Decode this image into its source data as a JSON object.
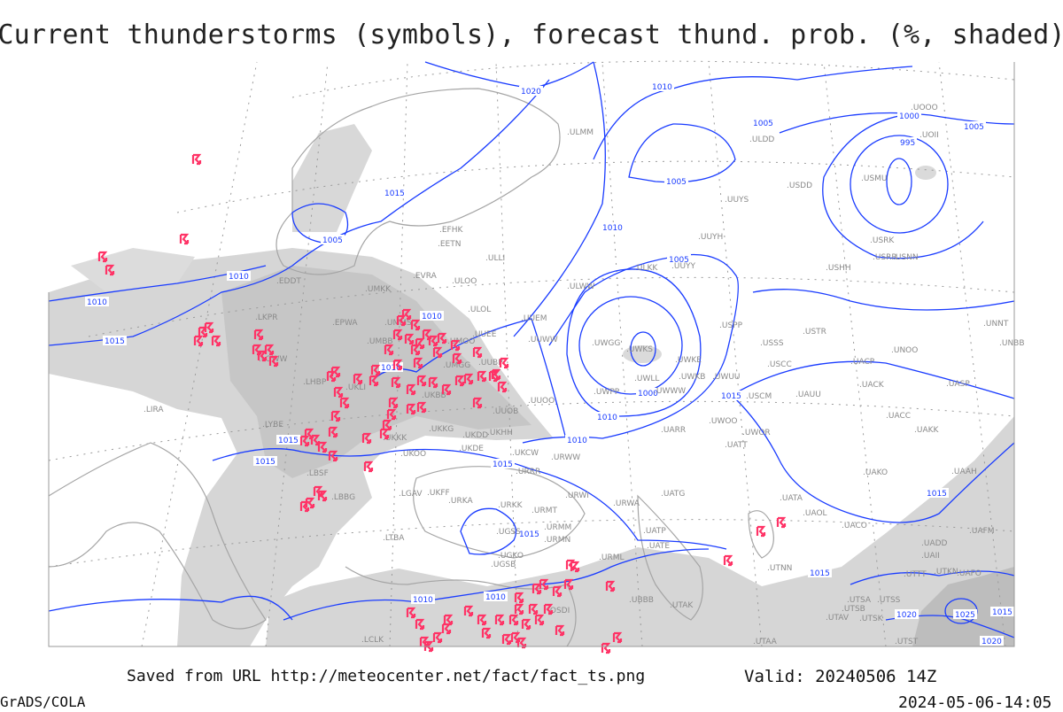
{
  "title": "Current thunderstorms (symbols), forecast thund. prob. (%, shaded)",
  "footer": {
    "saved_from": "Saved from URL http://meteocenter.net/fact/fact_ts.png",
    "valid": "Valid: 20240506 14Z",
    "software": "GrADS/COLA",
    "generated": "2024-05-06-14:05"
  },
  "colors": {
    "thunderstorm_symbol": "#ff3366",
    "isobar": "#1a3cff",
    "probability_shading": "#d4d4d4",
    "probability_shading_dark": "#bdbdbd",
    "station_label": "#8a8a8a"
  },
  "legend": {
    "symbols": "thunderstorm-symbol-icon",
    "shaded": "forecast thunderstorm probability (%)"
  },
  "isobar_labels": [
    "1020",
    "1010",
    "1005",
    "1000",
    "995",
    "1005",
    "1015",
    "1005",
    "1010",
    "1010",
    "1010",
    "1005",
    "1000",
    "1005",
    "1010",
    "1015",
    "1010",
    "1015",
    "1015",
    "1015",
    "1015",
    "1010",
    "1010",
    "1015",
    "1015",
    "1015",
    "1020",
    "1025",
    "1015",
    "1020",
    "1010",
    "1010"
  ],
  "stations": [
    "ULMM",
    "ULDD",
    "UOOO",
    "UOII",
    "USDD",
    "USMU",
    "UUYS",
    "UUYH",
    "USRK",
    "USRR",
    "USNN",
    "USHH",
    "UUYY",
    "ULKK",
    "ULWW",
    "EFHK",
    "EETN",
    "ULLI",
    "EVRA",
    "ULOO",
    "ULOL",
    "UUEM",
    "UUWW",
    "UWGG",
    "UWKS",
    "UWKE",
    "UWKB",
    "UWUU",
    "UWLL",
    "UWWW",
    "UWPP",
    "UUOO",
    "USPP",
    "USSS",
    "USCC",
    "USCM",
    "USTR",
    "UNOO",
    "UACP",
    "UACK",
    "UASP",
    "UNNT",
    "UNBB",
    "UAUU",
    "UACC",
    "UAKK",
    "UWOO",
    "UWOR",
    "UARR",
    "UATT",
    "EDDT",
    "UMKK",
    "LKPR",
    "EPWA",
    "UMMS",
    "UMBB",
    "UUEE",
    "UMOO",
    "UUBP",
    "UMGG",
    "LOWW",
    "LHBP",
    "UKLI",
    "UKBB",
    "UUOB",
    "LIRA",
    "LYBE",
    "UKKK",
    "UKKG",
    "UKDD",
    "UKHH",
    "UKDE",
    "UKOO",
    "UKCW",
    "URRR",
    "URWW",
    "LBSF",
    "LBBG",
    "UKFF",
    "URKA",
    "URKK",
    "URWI",
    "URWA",
    "URMT",
    "UATG",
    "URMM",
    "URMN",
    "UGSS",
    "UATP",
    "UGKO",
    "UGSB",
    "UATE",
    "URML",
    "UATA",
    "UAOL",
    "UACO",
    "UAKO",
    "UAAH",
    "UADD",
    "UAII",
    "UAFM",
    "UTTT",
    "UTKN",
    "UAFO",
    "UTNN",
    "UTSA",
    "UTSS",
    "UTSB",
    "UTAV",
    "UTSK",
    "UTAA",
    "UTST",
    "UBBB",
    "UTAK",
    "LTBA",
    "LCLK",
    "OSDI",
    "LGAV"
  ]
}
